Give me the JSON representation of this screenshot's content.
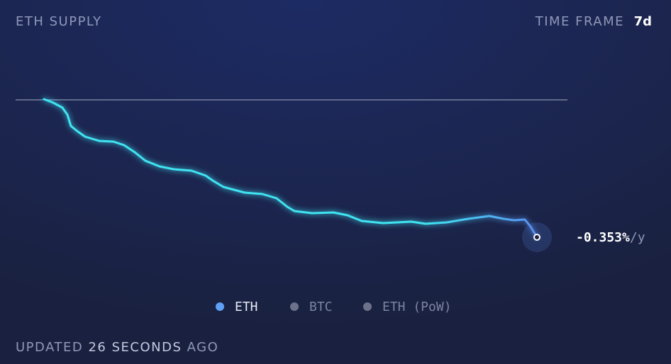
{
  "chart_data": {
    "type": "line",
    "title": "ETH SUPPLY",
    "time_frame_label": "TIME FRAME",
    "time_frame": "7d",
    "end_label": "-0.353%",
    "end_label_unit": "/y",
    "xlim": [
      0,
      778
    ],
    "ylim": [
      -200,
      0
    ],
    "baseline": 0,
    "x": [
      40,
      53,
      66,
      73,
      78,
      88,
      98,
      118,
      138,
      153,
      168,
      183,
      203,
      223,
      248,
      268,
      278,
      293,
      323,
      348,
      368,
      383,
      393,
      418,
      448,
      468,
      488,
      518,
      558,
      578,
      608,
      638,
      668,
      688,
      703,
      718,
      726,
      735
    ],
    "series": [
      {
        "color": "#3fe3f2",
        "end_color": "#5b8ef0",
        "values": [
          1,
          -4,
          -11,
          -21,
          -37,
          -45,
          -52,
          -58,
          -59,
          -64,
          -74,
          -86,
          -94,
          -98,
          -100,
          -107,
          -114,
          -123,
          -131,
          -133,
          -139,
          -151,
          -157,
          -160,
          -159,
          -163,
          -171,
          -174,
          -172,
          -175,
          -173,
          -168,
          -164,
          -168,
          -170,
          -169,
          -179,
          -194
        ]
      }
    ],
    "legend": [
      {
        "name": "ETH",
        "color": "#5fa0f5",
        "active": true
      },
      {
        "name": "BTC",
        "color": "#6b7289",
        "active": false
      },
      {
        "name": "ETH (PoW)",
        "color": "#6b7289",
        "active": false
      }
    ],
    "updated": {
      "prefix": "UPDATED",
      "count": 26,
      "unit": "SECONDS",
      "suffix": "AGO"
    }
  }
}
